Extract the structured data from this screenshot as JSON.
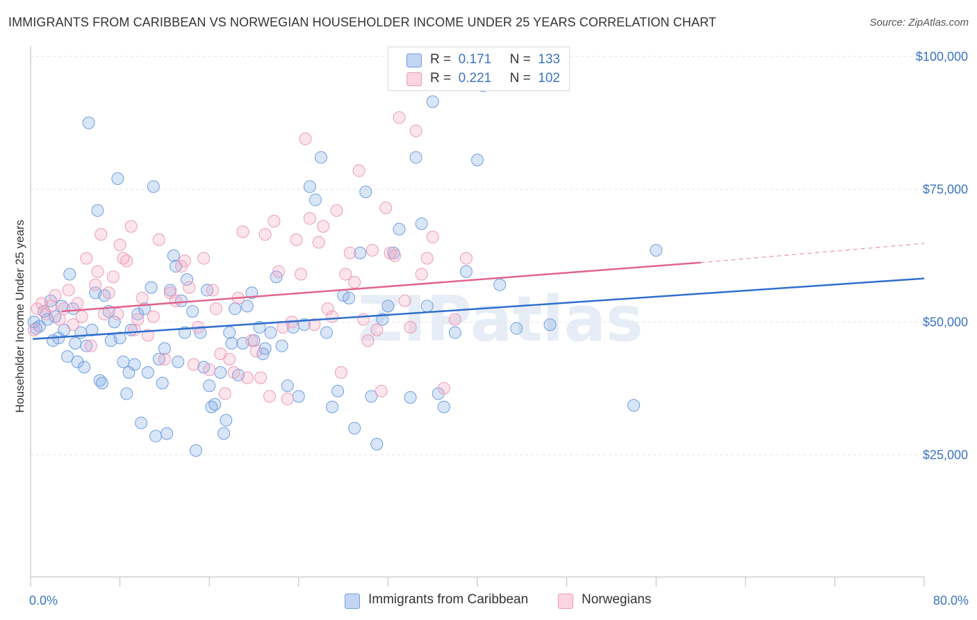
{
  "title": "IMMIGRANTS FROM CARIBBEAN VS NORWEGIAN HOUSEHOLDER INCOME UNDER 25 YEARS CORRELATION CHART",
  "source": "Source: ZipAtlas.com",
  "watermark": "ZIPatlas",
  "colors": {
    "blue_fill": "rgba(120,165,230,0.28)",
    "blue_stroke": "#6e9de0",
    "blue_line": "#2f6fcc",
    "pink_fill": "rgba(245,160,190,0.28)",
    "pink_stroke": "#ec9ab6",
    "pink_line": "#e0648c",
    "tick_color": "#3b73c4"
  },
  "legend_top": {
    "rows": [
      {
        "r_label": "R =",
        "r_value": "0.171",
        "n_label": "N =",
        "n_value": "133"
      },
      {
        "r_label": "R =",
        "r_value": "0.221",
        "n_label": "N =",
        "n_value": "102"
      }
    ]
  },
  "legend_bottom": [
    "Immigrants from Caribbean",
    "Norwegians"
  ],
  "chart_data": {
    "type": "scatter",
    "title": "IMMIGRANTS FROM CARIBBEAN VS NORWEGIAN HOUSEHOLDER INCOME UNDER 25 YEARS CORRELATION CHART",
    "xlabel": "",
    "ylabel": "Householder Income Under 25 years",
    "xlim": [
      0,
      80
    ],
    "ylim": [
      2000,
      102000
    ],
    "x_tick_labels": [
      "0.0%",
      "80.0%"
    ],
    "y_ticks": [
      25000,
      50000,
      75000,
      100000
    ],
    "y_tick_labels": [
      "$25,000",
      "$50,000",
      "$75,000",
      "$100,000"
    ],
    "grid": true,
    "legend_position": "top-center",
    "series": [
      {
        "name": "Immigrants from Caribbean",
        "trend": {
          "x": [
            0.2,
            80
          ],
          "y": [
            46800,
            58200
          ]
        },
        "points": [
          [
            0.3,
            50000
          ],
          [
            0.5,
            48800
          ],
          [
            0.8,
            49200
          ],
          [
            1.2,
            52000
          ],
          [
            1.5,
            50500
          ],
          [
            1.8,
            54000
          ],
          [
            2.0,
            46500
          ],
          [
            2.2,
            51000
          ],
          [
            2.5,
            47000
          ],
          [
            2.8,
            53000
          ],
          [
            3.0,
            48500
          ],
          [
            3.3,
            43500
          ],
          [
            3.5,
            59000
          ],
          [
            3.8,
            52500
          ],
          [
            4.0,
            46000
          ],
          [
            4.2,
            42500
          ],
          [
            4.5,
            48000
          ],
          [
            4.8,
            41500
          ],
          [
            5.0,
            45500
          ],
          [
            5.2,
            87500
          ],
          [
            5.5,
            48500
          ],
          [
            5.8,
            55500
          ],
          [
            6.0,
            71000
          ],
          [
            6.2,
            39000
          ],
          [
            6.4,
            38500
          ],
          [
            6.6,
            55000
          ],
          [
            7.0,
            52000
          ],
          [
            7.2,
            46500
          ],
          [
            7.5,
            50000
          ],
          [
            7.8,
            77000
          ],
          [
            8.0,
            47000
          ],
          [
            8.3,
            42500
          ],
          [
            8.6,
            36500
          ],
          [
            8.8,
            40500
          ],
          [
            9.0,
            48500
          ],
          [
            9.3,
            42000
          ],
          [
            9.6,
            51500
          ],
          [
            9.9,
            31000
          ],
          [
            10.2,
            52500
          ],
          [
            10.5,
            40500
          ],
          [
            10.8,
            56500
          ],
          [
            11.0,
            75500
          ],
          [
            11.2,
            28500
          ],
          [
            11.5,
            43000
          ],
          [
            11.8,
            38500
          ],
          [
            12.0,
            45000
          ],
          [
            12.2,
            29000
          ],
          [
            12.5,
            56000
          ],
          [
            12.8,
            62500
          ],
          [
            13.0,
            60500
          ],
          [
            13.2,
            42500
          ],
          [
            13.5,
            54000
          ],
          [
            13.8,
            48000
          ],
          [
            14.0,
            58000
          ],
          [
            14.5,
            52000
          ],
          [
            14.8,
            25800
          ],
          [
            15.2,
            48000
          ],
          [
            15.5,
            41500
          ],
          [
            15.8,
            56000
          ],
          [
            16.0,
            38000
          ],
          [
            16.2,
            34000
          ],
          [
            16.5,
            34500
          ],
          [
            17.0,
            40500
          ],
          [
            17.3,
            29000
          ],
          [
            17.5,
            31500
          ],
          [
            17.8,
            48000
          ],
          [
            18.0,
            46000
          ],
          [
            18.3,
            52500
          ],
          [
            18.6,
            40000
          ],
          [
            19.0,
            46000
          ],
          [
            19.4,
            53000
          ],
          [
            19.8,
            55500
          ],
          [
            20.0,
            46500
          ],
          [
            20.5,
            49000
          ],
          [
            20.8,
            44000
          ],
          [
            21.0,
            45000
          ],
          [
            21.5,
            48000
          ],
          [
            22.0,
            58500
          ],
          [
            22.5,
            45500
          ],
          [
            23.0,
            38000
          ],
          [
            23.5,
            49000
          ],
          [
            24.0,
            36000
          ],
          [
            24.5,
            49500
          ],
          [
            25.0,
            75500
          ],
          [
            25.5,
            73000
          ],
          [
            26.0,
            81000
          ],
          [
            26.5,
            48000
          ],
          [
            27.0,
            34000
          ],
          [
            27.5,
            37000
          ],
          [
            28.0,
            55000
          ],
          [
            28.5,
            54500
          ],
          [
            29.0,
            30000
          ],
          [
            29.5,
            63000
          ],
          [
            30.0,
            74500
          ],
          [
            30.5,
            36000
          ],
          [
            31.0,
            27000
          ],
          [
            31.5,
            50500
          ],
          [
            32.0,
            53000
          ],
          [
            32.5,
            63000
          ],
          [
            33.0,
            67500
          ],
          [
            34.0,
            35800
          ],
          [
            34.5,
            81000
          ],
          [
            35.0,
            68500
          ],
          [
            35.5,
            53000
          ],
          [
            36.0,
            91500
          ],
          [
            36.5,
            36500
          ],
          [
            37.0,
            34000
          ],
          [
            38.0,
            48000
          ],
          [
            39.0,
            59500
          ],
          [
            40.0,
            80500
          ],
          [
            40.5,
            94500
          ],
          [
            42.0,
            57000
          ],
          [
            43.5,
            48800
          ],
          [
            46.5,
            49500
          ],
          [
            54.0,
            34300
          ],
          [
            56.0,
            63500
          ]
        ]
      },
      {
        "name": "Norwegians",
        "trend": {
          "x": [
            2.8,
            60
          ],
          "y": [
            52000,
            61200
          ]
        },
        "trend_extension": {
          "x": [
            60,
            80
          ],
          "y": [
            61200,
            64800
          ]
        },
        "points": [
          [
            0.3,
            48500
          ],
          [
            0.6,
            52500
          ],
          [
            1.0,
            53500
          ],
          [
            1.4,
            51500
          ],
          [
            1.8,
            53000
          ],
          [
            2.2,
            55000
          ],
          [
            2.6,
            50500
          ],
          [
            3.0,
            52500
          ],
          [
            3.4,
            56000
          ],
          [
            3.8,
            49500
          ],
          [
            4.2,
            53500
          ],
          [
            4.6,
            51000
          ],
          [
            5.0,
            62000
          ],
          [
            5.4,
            45500
          ],
          [
            5.8,
            57000
          ],
          [
            6.0,
            59500
          ],
          [
            6.3,
            66500
          ],
          [
            6.6,
            51500
          ],
          [
            7.0,
            55500
          ],
          [
            7.4,
            58500
          ],
          [
            7.8,
            51500
          ],
          [
            8.0,
            64500
          ],
          [
            8.3,
            62000
          ],
          [
            8.6,
            61500
          ],
          [
            9.0,
            68000
          ],
          [
            9.3,
            48500
          ],
          [
            9.6,
            50500
          ],
          [
            10.0,
            54500
          ],
          [
            10.5,
            47500
          ],
          [
            11.0,
            51000
          ],
          [
            11.5,
            65500
          ],
          [
            12.0,
            43000
          ],
          [
            12.5,
            55500
          ],
          [
            13.0,
            54000
          ],
          [
            13.5,
            60500
          ],
          [
            13.8,
            61500
          ],
          [
            14.2,
            56500
          ],
          [
            14.6,
            42000
          ],
          [
            15.0,
            49000
          ],
          [
            15.5,
            62000
          ],
          [
            16.0,
            41000
          ],
          [
            16.3,
            56000
          ],
          [
            16.6,
            52500
          ],
          [
            17.0,
            44000
          ],
          [
            17.4,
            36500
          ],
          [
            17.8,
            43000
          ],
          [
            18.2,
            40500
          ],
          [
            18.6,
            54500
          ],
          [
            19.0,
            67000
          ],
          [
            19.4,
            39500
          ],
          [
            19.8,
            46500
          ],
          [
            20.2,
            44500
          ],
          [
            20.6,
            39500
          ],
          [
            21.0,
            66500
          ],
          [
            21.4,
            36000
          ],
          [
            21.8,
            69000
          ],
          [
            22.2,
            59500
          ],
          [
            22.6,
            49000
          ],
          [
            23.0,
            35500
          ],
          [
            23.4,
            50000
          ],
          [
            23.8,
            65500
          ],
          [
            24.2,
            59000
          ],
          [
            24.6,
            84500
          ],
          [
            25.0,
            69500
          ],
          [
            25.4,
            49500
          ],
          [
            25.8,
            65000
          ],
          [
            26.2,
            68000
          ],
          [
            26.6,
            52500
          ],
          [
            27.0,
            51000
          ],
          [
            27.4,
            71000
          ],
          [
            27.8,
            40500
          ],
          [
            28.2,
            59000
          ],
          [
            28.6,
            63000
          ],
          [
            29.0,
            57500
          ],
          [
            29.4,
            78500
          ],
          [
            29.8,
            50500
          ],
          [
            30.2,
            46500
          ],
          [
            30.6,
            63500
          ],
          [
            31.0,
            48500
          ],
          [
            31.4,
            37000
          ],
          [
            31.8,
            71500
          ],
          [
            32.2,
            63000
          ],
          [
            32.6,
            62500
          ],
          [
            33.0,
            88500
          ],
          [
            33.5,
            54000
          ],
          [
            34.0,
            49000
          ],
          [
            34.5,
            86000
          ],
          [
            35.0,
            59000
          ],
          [
            35.5,
            62000
          ],
          [
            36.0,
            66000
          ],
          [
            36.5,
            97500
          ],
          [
            37.0,
            37500
          ],
          [
            38.0,
            50500
          ],
          [
            39.0,
            62000
          ]
        ]
      }
    ]
  }
}
